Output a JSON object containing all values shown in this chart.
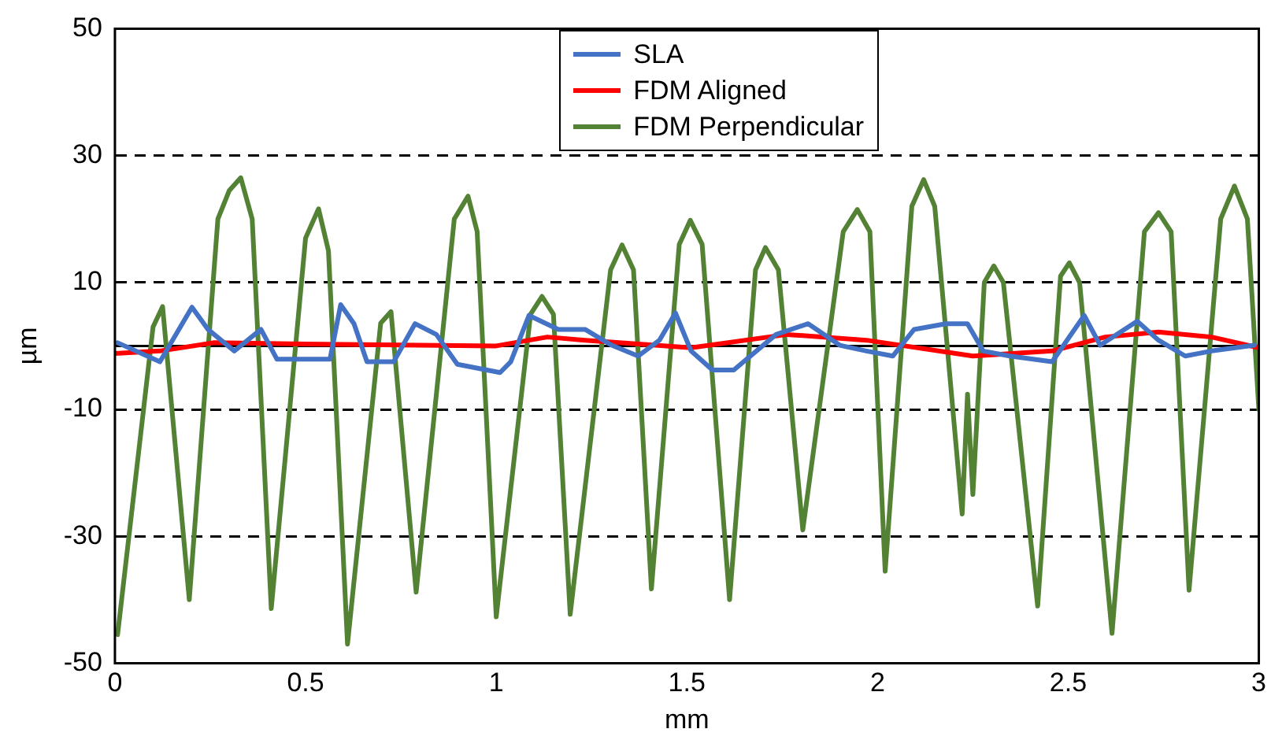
{
  "chart_data": {
    "type": "line",
    "xlabel": "mm",
    "ylabel": "µm",
    "xlim": [
      0,
      3
    ],
    "xticks": [
      0,
      0.5,
      1,
      1.5,
      2,
      2.5,
      3
    ],
    "ylim": [
      -50,
      50
    ],
    "yticks": [
      -50,
      -30,
      -10,
      10,
      30,
      50
    ],
    "grid": "y",
    "line_style": "solid",
    "marker": "none",
    "legend": "top",
    "ref_lines": [
      {
        "axis": "y",
        "value": 0,
        "color": "#000000"
      }
    ],
    "series": [
      {
        "name": "SLA",
        "color": "#4472c4",
        "x": [
          0.007,
          0.118,
          0.202,
          0.244,
          0.313,
          0.383,
          0.425,
          0.564,
          0.592,
          0.627,
          0.661,
          0.731,
          0.787,
          0.843,
          0.898,
          1.01,
          1.038,
          1.086,
          1.163,
          1.233,
          1.303,
          1.372,
          1.428,
          1.47,
          1.511,
          1.567,
          1.623,
          1.734,
          1.818,
          1.901,
          1.971,
          2.04,
          2.096,
          2.179,
          2.236,
          2.277,
          2.347,
          2.458,
          2.542,
          2.584,
          2.681,
          2.737,
          2.807,
          2.876,
          2.988
        ],
        "values": [
          0.5,
          -2.5,
          6.1,
          2.6,
          -0.8,
          2.6,
          -2.1,
          -2.1,
          6.5,
          3.5,
          -2.5,
          -2.5,
          3.5,
          1.8,
          -2.9,
          -4.2,
          -2.5,
          4.8,
          2.6,
          2.6,
          0.1,
          -1.6,
          0.9,
          5.2,
          -0.8,
          -3.8,
          -3.8,
          1.8,
          3.5,
          0.1,
          -0.8,
          -1.6,
          2.6,
          3.5,
          3.5,
          -0.8,
          -1.6,
          -2.5,
          4.8,
          0.1,
          3.9,
          0.9,
          -1.6,
          -0.8,
          0.1
        ]
      },
      {
        "name": "FDM Aligned",
        "color": "#ff0000",
        "x": [
          0,
          0.118,
          0.258,
          0.5,
          1.0,
          1.134,
          1.233,
          1.511,
          1.762,
          1.971,
          2.25,
          2.458,
          2.597,
          2.737,
          2.876,
          3.0
        ],
        "values": [
          -1.2,
          -0.8,
          0.5,
          0.3,
          0,
          1.4,
          0.9,
          -0.3,
          1.8,
          0.9,
          -1.6,
          -0.8,
          1.4,
          2.2,
          1.4,
          -0.3
        ]
      },
      {
        "name": "FDM Perpendicular",
        "color": "#548235",
        "x": [
          0.007,
          0.1,
          0.125,
          0.195,
          0.27,
          0.3,
          0.33,
          0.36,
          0.41,
          0.5,
          0.534,
          0.56,
          0.61,
          0.697,
          0.724,
          0.79,
          0.89,
          0.926,
          0.95,
          1.0,
          1.09,
          1.12,
          1.15,
          1.194,
          1.3,
          1.33,
          1.36,
          1.407,
          1.48,
          1.509,
          1.54,
          1.612,
          1.68,
          1.706,
          1.74,
          1.804,
          1.91,
          1.947,
          1.98,
          2.02,
          2.09,
          2.121,
          2.15,
          2.222,
          2.236,
          2.25,
          2.28,
          2.305,
          2.33,
          2.42,
          2.48,
          2.503,
          2.53,
          2.615,
          2.7,
          2.737,
          2.77,
          2.817,
          2.9,
          2.936,
          2.97,
          3.0
        ],
        "values": [
          -45.5,
          3,
          6.2,
          -40,
          20,
          24.5,
          26.5,
          20,
          -41.4,
          17,
          21.6,
          15,
          -47,
          3.6,
          5.4,
          -38.8,
          20,
          23.6,
          18,
          -42.7,
          5,
          7.8,
          5,
          -42.3,
          12,
          15.9,
          12,
          -38.3,
          16,
          19.8,
          16,
          -40,
          12,
          15.5,
          12,
          -29,
          18,
          21.5,
          18,
          -35.5,
          22,
          26.2,
          22,
          -26.5,
          -7.6,
          -23.4,
          10,
          12.6,
          10,
          -41,
          11,
          13.1,
          10,
          -45.3,
          18,
          21,
          18,
          -38.5,
          20,
          25.2,
          20,
          -10
        ]
      }
    ]
  }
}
